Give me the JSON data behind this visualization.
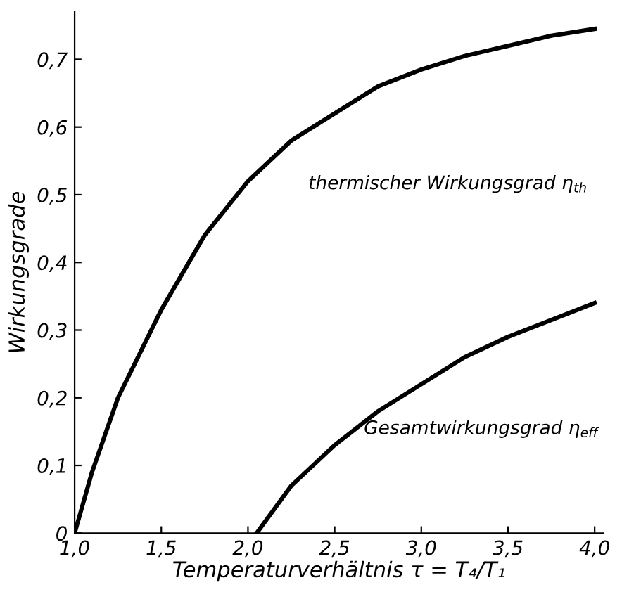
{
  "chart_data": {
    "type": "line",
    "xlabel": "Temperaturverhältnis τ = T₄/T₁",
    "ylabel": "Wirkungsgrade",
    "xlim": [
      1.0,
      4.05
    ],
    "ylim": [
      0,
      0.77
    ],
    "xticks": [
      {
        "value": 1.0,
        "label": "1,0"
      },
      {
        "value": 1.5,
        "label": "1,5"
      },
      {
        "value": 2.0,
        "label": "2,0"
      },
      {
        "value": 2.5,
        "label": "2,5"
      },
      {
        "value": 3.0,
        "label": "3,0"
      },
      {
        "value": 3.5,
        "label": "3,5"
      },
      {
        "value": 4.0,
        "label": "4,0"
      }
    ],
    "yticks": [
      0,
      {
        "value": 0.1,
        "label": "0,1"
      },
      {
        "value": 0.2,
        "label": "0,2"
      },
      {
        "value": 0.3,
        "label": "0,3"
      },
      {
        "value": 0.4,
        "label": "0,4"
      },
      {
        "value": 0.5,
        "label": "0,5"
      },
      {
        "value": 0.6,
        "label": "0,6"
      },
      {
        "value": 0.7,
        "label": "0,7"
      }
    ],
    "grid": false,
    "legend": false,
    "marker": "none",
    "line_style": "solid",
    "series": [
      {
        "name": "thermischer Wirkungsgrad η$_{th}$",
        "color": "#000000",
        "x": [
          1.0,
          1.1,
          1.25,
          1.5,
          1.75,
          2.0,
          2.25,
          2.5,
          2.75,
          3.0,
          3.25,
          3.5,
          3.75,
          4.0
        ],
        "values": [
          0,
          0.09,
          0.2,
          0.33,
          0.44,
          0.52,
          0.58,
          0.62,
          0.66,
          0.685,
          0.705,
          0.72,
          0.735,
          0.745
        ]
      },
      {
        "name": "Gesamtwirkungsgrad η$_{eff}$",
        "color": "#000000",
        "x": [
          2.05,
          2.25,
          2.5,
          2.75,
          3.0,
          3.25,
          3.5,
          3.75,
          4.0
        ],
        "values": [
          0,
          0.07,
          0.13,
          0.18,
          0.22,
          0.26,
          0.29,
          0.315,
          0.34
        ]
      }
    ]
  }
}
